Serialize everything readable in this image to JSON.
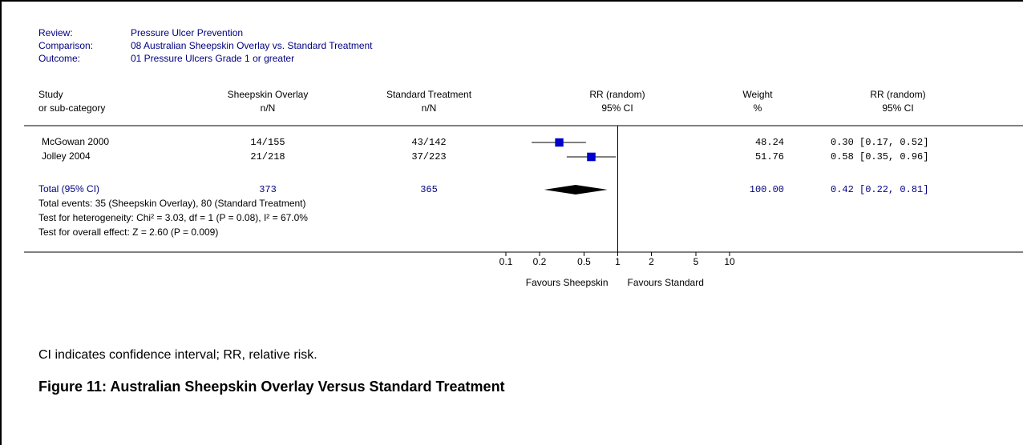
{
  "chart_data": {
    "type": "forest",
    "header_labels": [
      "Review:",
      "Comparison:",
      "Outcome:"
    ],
    "header_values": [
      "Pressure Ulcer Prevention",
      "08 Australian Sheepskin Overlay vs. Standard Treatment",
      "01 Pressure Ulcers Grade 1 or greater"
    ],
    "column_headers": [
      [
        "Study",
        "or sub-category"
      ],
      [
        "Sheepskin Overlay",
        "n/N"
      ],
      [
        "Standard Treatment",
        "n/N"
      ],
      [
        "RR (random)",
        "95% CI"
      ],
      [
        "Weight",
        "%"
      ],
      [
        "RR (random)",
        "95% CI"
      ]
    ],
    "categories": [
      "McGowan 2000",
      "Jolley 2004"
    ],
    "treatment": [
      "14/155",
      "21/218"
    ],
    "control": [
      "43/142",
      "37/223"
    ],
    "values": [
      0.3,
      0.58
    ],
    "ci_low": [
      0.17,
      0.35
    ],
    "ci_high": [
      0.52,
      0.96
    ],
    "weights": [
      48.24,
      51.76
    ],
    "ci_labels": [
      "0.30 [0.17, 0.52]",
      "0.58 [0.35, 0.96]"
    ],
    "color": "#0000cc",
    "total": {
      "label": "Total (95% CI)",
      "treatment": "373",
      "control": "365",
      "value": 0.42,
      "ci_low": 0.22,
      "ci_high": 0.81,
      "weight": 100,
      "weight_label": "100.00",
      "ci_label": "0.42 [0.22, 0.81]",
      "color": "#000000"
    },
    "notes": [
      "Total events: 35 (Sheepskin Overlay), 80 (Standard Treatment)",
      "Test for heterogeneity: Chi² = 3.03, df = 1 (P = 0.08), I² = 67.0%",
      "Test for overall effect: Z = 2.60 (P = 0.009)"
    ],
    "xlim": [
      0.1,
      10
    ],
    "xticks": [
      0.1,
      0.2,
      0.5,
      1,
      2,
      5,
      10
    ],
    "log_x": true,
    "xlabel_left": "Favours Sheepskin",
    "xlabel_right": "Favours Standard",
    "caption": "CI indicates confidence interval; RR, relative risk.",
    "figure_title": "Figure 11:  Australian Sheepskin Overlay Versus Standard Treatment"
  }
}
